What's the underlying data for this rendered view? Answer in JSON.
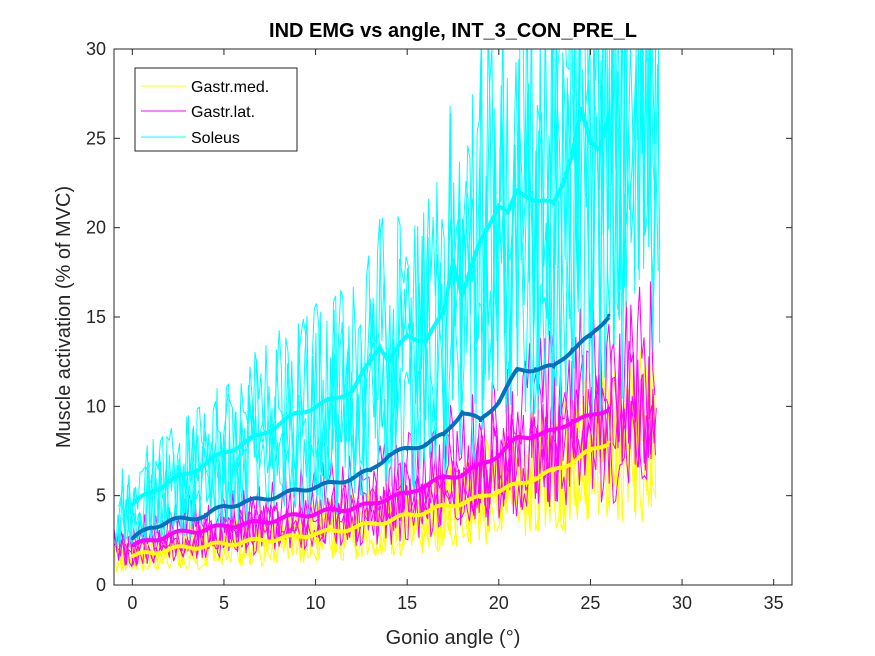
{
  "chart_data": {
    "type": "line",
    "title": "IND EMG vs angle, INT_3_CON_PRE_L",
    "xlabel": "Gonio angle (°)",
    "ylabel": "Muscle activation (% of MVC)",
    "xlim": [
      -1,
      36
    ],
    "ylim": [
      0,
      30
    ],
    "xticks": [
      0,
      5,
      10,
      15,
      20,
      25,
      30,
      35
    ],
    "yticks": [
      0,
      5,
      10,
      15,
      20,
      25,
      30
    ],
    "grid": false,
    "legend_position": "top-left",
    "legend": [
      {
        "name": "Gastr.med.",
        "color": "#FFFF00"
      },
      {
        "name": "Gastr.lat.",
        "color": "#FF00FF"
      },
      {
        "name": "Soleus",
        "color": "#00FFFF"
      }
    ],
    "series": [
      {
        "name": "Soleus",
        "color": "#00FFFF",
        "x": [
          0,
          1,
          2,
          3,
          4,
          5,
          6,
          7,
          8,
          9,
          10,
          11,
          12,
          13,
          13.5,
          14,
          15,
          16,
          17,
          17.5,
          18,
          19,
          20,
          20.5,
          21,
          22,
          23,
          23.5,
          24,
          24.5,
          25,
          25.5,
          26
        ],
        "values": [
          4.5,
          5.2,
          5.8,
          6.2,
          6.8,
          7.4,
          7.9,
          8.4,
          9.0,
          9.6,
          10.0,
          10.4,
          10.9,
          12.5,
          13.4,
          12.6,
          13.9,
          13.7,
          15.2,
          18.2,
          16.3,
          19.2,
          21.3,
          20.8,
          22.0,
          21.6,
          21.3,
          22.5,
          24.2,
          26.6,
          24.7,
          24.4,
          26.4
        ]
      },
      {
        "name": "Mean (dark blue)",
        "color": "#0072BD",
        "x": [
          0,
          1,
          2,
          3,
          4,
          5,
          6,
          7,
          8,
          9,
          10,
          11,
          12,
          13,
          14,
          15,
          16,
          17,
          18,
          19,
          20,
          21,
          22,
          23,
          24,
          25,
          26
        ],
        "values": [
          2.6,
          3.2,
          3.6,
          3.7,
          3.9,
          4.4,
          4.6,
          4.8,
          5.0,
          5.3,
          5.5,
          5.7,
          6.0,
          6.4,
          7.3,
          7.6,
          7.9,
          8.4,
          9.7,
          9.2,
          10.3,
          12.0,
          12.1,
          12.2,
          13.2,
          13.9,
          15.1
        ]
      },
      {
        "name": "Gastr.lat.",
        "color": "#FF00FF",
        "x": [
          0,
          1,
          2,
          3,
          4,
          5,
          6,
          7,
          8,
          9,
          10,
          11,
          12,
          13,
          14,
          15,
          16,
          17,
          18,
          19,
          20,
          21,
          22,
          23,
          24,
          25,
          26
        ],
        "values": [
          2.2,
          2.5,
          2.8,
          3.0,
          3.1,
          3.3,
          3.4,
          3.5,
          3.7,
          3.9,
          4.0,
          4.2,
          4.3,
          4.5,
          4.9,
          5.1,
          5.6,
          6.0,
          6.2,
          6.7,
          7.3,
          8.2,
          8.4,
          8.6,
          9.2,
          9.4,
          9.9
        ]
      },
      {
        "name": "Gastr.med.",
        "color": "#FFFF00",
        "x": [
          0,
          1,
          2,
          3,
          4,
          5,
          6,
          7,
          8,
          9,
          10,
          11,
          12,
          13,
          14,
          15,
          16,
          17,
          18,
          19,
          20,
          21,
          22,
          23,
          24,
          25,
          26
        ],
        "values": [
          1.6,
          1.8,
          2.0,
          2.1,
          2.2,
          2.3,
          2.4,
          2.5,
          2.6,
          2.7,
          2.9,
          3.0,
          3.2,
          3.4,
          3.6,
          3.9,
          4.1,
          4.4,
          4.6,
          4.9,
          5.3,
          5.6,
          6.0,
          6.4,
          6.9,
          7.5,
          8.0
        ]
      }
    ]
  }
}
